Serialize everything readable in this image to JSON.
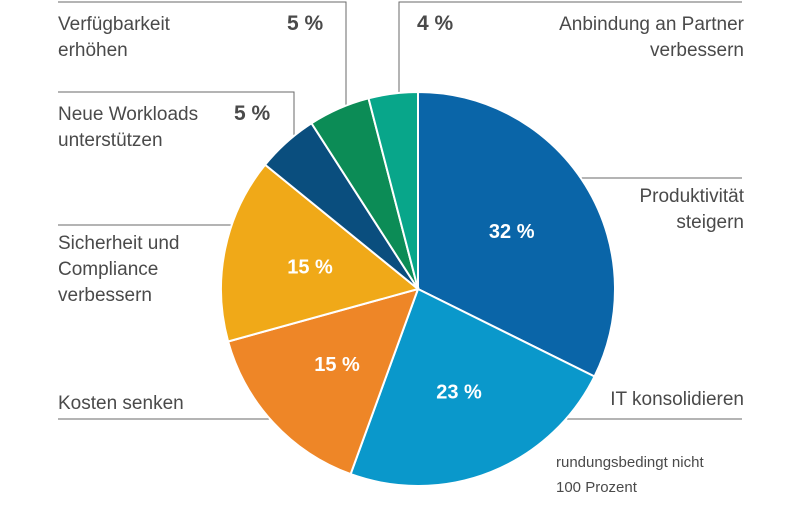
{
  "chart_data": {
    "type": "pie",
    "unit": "%",
    "slices": [
      {
        "label": "Produktivität steigern",
        "value": 32,
        "color": "#0a65a8",
        "value_text": "32 %"
      },
      {
        "label": "IT konsolidieren",
        "value": 23,
        "color": "#0a98cb",
        "value_text": "23 %"
      },
      {
        "label": "Kosten senken",
        "value": 15,
        "color": "#ee8627",
        "value_text": "15 %"
      },
      {
        "label": "Sicherheit und Compliance verbessern",
        "value": 15,
        "color": "#f0a918",
        "value_text": "15 %"
      },
      {
        "label": "Neue Workloads unterstützen",
        "value": 5,
        "color": "#0a4e7e",
        "value_text": "5 %"
      },
      {
        "label": "Verfügbarkeit erhöhen",
        "value": 5,
        "color": "#0c8c56",
        "value_text": "5 %"
      },
      {
        "label": "Anbindung an Partner verbessern",
        "value": 4,
        "color": "#08a68a",
        "value_text": "4 %"
      }
    ]
  },
  "labels": {
    "produktivitaet": [
      "Produktivität",
      "steigern"
    ],
    "it": "IT konsolidieren",
    "kosten": "Kosten senken",
    "sicherheit": [
      "Sicherheit und",
      "Compliance",
      "verbessern"
    ],
    "workloads": [
      "Neue Workloads",
      "unterstützen"
    ],
    "verfuegbarkeit": [
      "Verfügbarkeit",
      "erhöhen"
    ],
    "anbindung": [
      "Anbindung an Partner",
      "verbessern"
    ]
  },
  "note": [
    "rundungsbedingt nicht",
    "100 Prozent"
  ]
}
